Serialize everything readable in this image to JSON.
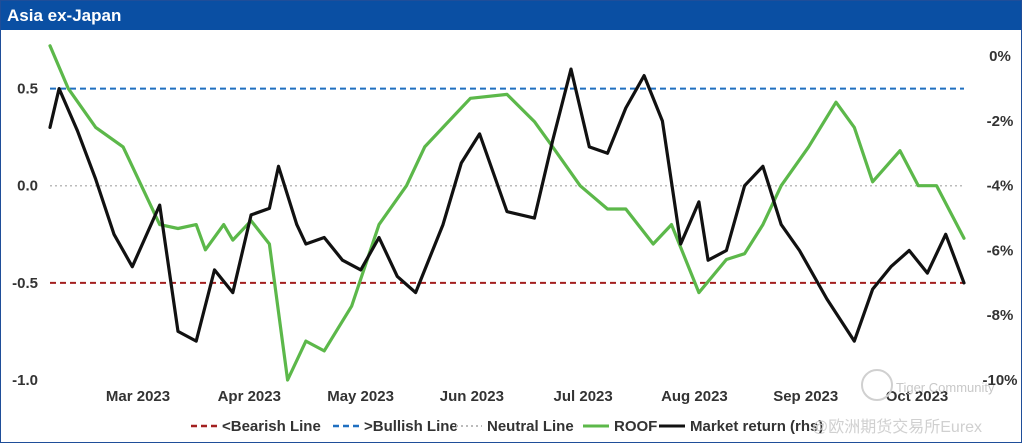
{
  "title": "Asia ex-Japan",
  "chart_data": {
    "type": "line",
    "title": "Asia ex-Japan",
    "left_axis": {
      "ticks": [
        "0.5",
        "0.0",
        "-0.5",
        "-1.0"
      ],
      "values": [
        0.5,
        0.0,
        -0.5,
        -1.0
      ],
      "ylim": [
        -1.0,
        0.75
      ]
    },
    "right_axis": {
      "ticks": [
        "0%",
        "-2%",
        "-4%",
        "-6%",
        "-8%",
        "-10%"
      ],
      "values": [
        0,
        -2,
        -4,
        -6,
        -8,
        -10
      ],
      "ylim": [
        -10,
        0.5
      ]
    },
    "x_ticks": [
      "Mar 2023",
      "Apr 2023",
      "May 2023",
      "Jun 2023",
      "Jul 2023",
      "Aug 2023",
      "Sep 2023",
      "Oct 2023"
    ],
    "reference_lines": [
      {
        "name": "<Bearish Line",
        "value": -0.5,
        "color": "#a32020",
        "style": "dashed"
      },
      {
        "name": ">Bullish Line",
        "value": 0.5,
        "color": "#1f6fc0",
        "style": "dashed"
      },
      {
        "name": "Neutral Line",
        "value": 0.0,
        "color": "#bbbbbb",
        "style": "dotted"
      }
    ],
    "series": [
      {
        "name": "ROOF",
        "axis": "left",
        "color": "#5cb84a",
        "x": [
          0,
          0.02,
          0.05,
          0.08,
          0.1,
          0.12,
          0.14,
          0.16,
          0.17,
          0.19,
          0.2,
          0.22,
          0.24,
          0.26,
          0.28,
          0.3,
          0.33,
          0.36,
          0.39,
          0.41,
          0.43,
          0.46,
          0.5,
          0.53,
          0.55,
          0.58,
          0.61,
          0.63,
          0.66,
          0.68,
          0.71,
          0.74,
          0.76,
          0.78,
          0.8,
          0.83,
          0.86,
          0.88,
          0.9,
          0.93,
          0.95,
          0.97,
          1.0
        ],
        "values": [
          0.72,
          0.5,
          0.3,
          0.2,
          0.0,
          -0.2,
          -0.22,
          -0.2,
          -0.33,
          -0.2,
          -0.28,
          -0.18,
          -0.3,
          -1.0,
          -0.8,
          -0.85,
          -0.62,
          -0.2,
          0.0,
          0.2,
          0.3,
          0.45,
          0.47,
          0.33,
          0.2,
          0.0,
          -0.12,
          -0.12,
          -0.3,
          -0.2,
          -0.55,
          -0.38,
          -0.35,
          -0.2,
          0.0,
          0.2,
          0.43,
          0.3,
          0.02,
          0.18,
          0.0,
          0.0,
          -0.27
        ]
      },
      {
        "name": "Market return (rhs)",
        "axis": "right",
        "color": "#111111",
        "x": [
          0,
          0.01,
          0.03,
          0.05,
          0.07,
          0.09,
          0.12,
          0.14,
          0.16,
          0.18,
          0.2,
          0.22,
          0.24,
          0.25,
          0.27,
          0.28,
          0.3,
          0.32,
          0.34,
          0.36,
          0.38,
          0.4,
          0.43,
          0.45,
          0.47,
          0.5,
          0.53,
          0.55,
          0.57,
          0.59,
          0.61,
          0.63,
          0.65,
          0.67,
          0.69,
          0.71,
          0.72,
          0.74,
          0.76,
          0.78,
          0.8,
          0.82,
          0.85,
          0.88,
          0.9,
          0.92,
          0.94,
          0.96,
          0.98,
          1.0
        ],
        "values": [
          -2.2,
          -1.0,
          -2.3,
          -3.8,
          -5.5,
          -6.5,
          -4.6,
          -8.5,
          -8.8,
          -6.6,
          -7.3,
          -4.9,
          -4.7,
          -3.4,
          -5.2,
          -5.8,
          -5.6,
          -6.3,
          -6.6,
          -5.6,
          -6.8,
          -7.3,
          -5.2,
          -3.3,
          -2.4,
          -4.8,
          -5.0,
          -2.6,
          -0.4,
          -2.8,
          -3.0,
          -1.6,
          -0.6,
          -2.0,
          -5.8,
          -4.5,
          -6.3,
          -6.0,
          -4.0,
          -3.4,
          -5.2,
          -6.0,
          -7.5,
          -8.8,
          -7.2,
          -6.5,
          -6.0,
          -6.7,
          -5.5,
          -7.0
        ]
      }
    ]
  },
  "legend": {
    "bearish": "<Bearish Line",
    "bullish": ">Bullish Line",
    "neutral": "Neutral Line",
    "roof": "ROOF",
    "market": "Market return (rhs)"
  },
  "watermarks": {
    "community": "Tiger Community",
    "eurex": "@欧洲期货交易所Eurex"
  }
}
